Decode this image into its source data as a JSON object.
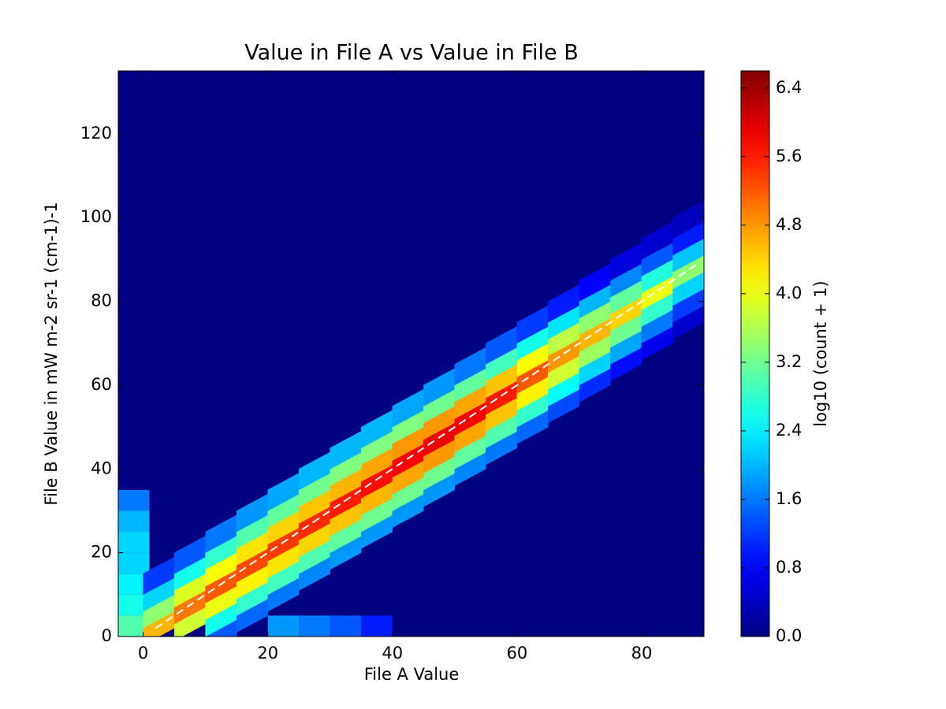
{
  "chart_data": {
    "type": "hexbin",
    "title": "Value in File A vs Value in File B",
    "x_label": "File A Value",
    "y_label": "File B Value in mW m-2 sr-1 (cm-1)-1",
    "colorbar_label": "log10 (count + 1)",
    "colormap": "jet",
    "xlim": [
      -4,
      90
    ],
    "xticks": [
      0,
      20,
      40,
      60,
      80
    ],
    "ylim": [
      0,
      135
    ],
    "yticks": [
      0,
      20,
      40,
      60,
      80,
      100,
      120
    ],
    "clim": [
      0,
      6.6
    ],
    "cticks": [
      {
        "value": 0,
        "label": "0.0"
      },
      0.8,
      1.6,
      2.4,
      3.2,
      {
        "value": 4,
        "label": "4.0"
      },
      4.8,
      5.6,
      6.4
    ],
    "reference_line": {
      "color": "#ffffff",
      "x": [
        2,
        89
      ],
      "y": [
        2,
        89
      ]
    },
    "band": {
      "x": [
        2.5,
        2.5,
        2.5,
        2.5,
        7.5,
        7.5,
        7.5,
        7.5,
        7.5,
        12.5,
        12.5,
        12.5,
        12.5,
        12.5,
        12.5,
        12.5,
        17.5,
        17.5,
        17.5,
        17.5,
        17.5,
        17.5,
        17.5,
        22.5,
        22.5,
        22.5,
        22.5,
        22.5,
        22.5,
        22.5,
        27.5,
        27.5,
        27.5,
        27.5,
        27.5,
        27.5,
        27.5,
        32.5,
        32.5,
        32.5,
        32.5,
        32.5,
        32.5,
        32.5,
        37.5,
        37.5,
        37.5,
        37.5,
        37.5,
        37.5,
        37.5,
        42.5,
        42.5,
        42.5,
        42.5,
        42.5,
        42.5,
        42.5,
        47.5,
        47.5,
        47.5,
        47.5,
        47.5,
        47.5,
        47.5,
        52.5,
        52.5,
        52.5,
        52.5,
        52.5,
        52.5,
        52.5,
        57.5,
        57.5,
        57.5,
        57.5,
        57.5,
        57.5,
        57.5,
        62.5,
        62.5,
        62.5,
        62.5,
        62.5,
        62.5,
        62.5,
        67.5,
        67.5,
        67.5,
        67.5,
        67.5,
        67.5,
        67.5,
        72.5,
        72.5,
        72.5,
        72.5,
        72.5,
        72.5,
        72.5,
        77.5,
        77.5,
        77.5,
        77.5,
        77.5,
        77.5,
        77.5,
        82.5,
        82.5,
        82.5,
        82.5,
        82.5,
        82.5,
        82.5,
        87.5,
        87.5,
        87.5,
        87.5,
        87.5,
        87.5,
        87.5
      ],
      "y": [
        2.5,
        6.5,
        10.5,
        14.5,
        3.5,
        7.5,
        11.5,
        15.5,
        19.5,
        0.5,
        4.5,
        8.5,
        12.5,
        16.5,
        20.5,
        24.5,
        5.5,
        9.5,
        13.5,
        17.5,
        21.5,
        25.5,
        29.5,
        10.5,
        14.5,
        18.5,
        22.5,
        26.5,
        30.5,
        34.5,
        15.5,
        19.5,
        23.5,
        27.5,
        31.5,
        35.5,
        39.5,
        20.5,
        24.5,
        28.5,
        32.5,
        36.5,
        40.5,
        44.5,
        25.5,
        29.5,
        33.5,
        37.5,
        41.5,
        45.5,
        49.5,
        30.5,
        34.5,
        38.5,
        42.5,
        46.5,
        50.5,
        54.5,
        35.5,
        39.5,
        43.5,
        47.5,
        51.5,
        55.5,
        59.5,
        40.5,
        44.5,
        48.5,
        52.5,
        56.5,
        60.5,
        64.5,
        45.5,
        49.5,
        53.5,
        57.5,
        61.5,
        65.5,
        69.5,
        50.5,
        54.5,
        58.5,
        62.5,
        66.5,
        70.5,
        74.5,
        55.5,
        59.5,
        63.5,
        67.5,
        71.5,
        75.5,
        79.5,
        60.5,
        64.5,
        68.5,
        72.5,
        76.5,
        80.5,
        84.5,
        65.5,
        69.5,
        73.5,
        77.5,
        81.5,
        85.5,
        89.5,
        70.5,
        74.5,
        78.5,
        82.5,
        86.5,
        90.5,
        94.5,
        75.5,
        79.5,
        83.5,
        87.5,
        91.5,
        95.5,
        99.5
      ],
      "values": [
        4.6,
        3.4,
        2.2,
        1.2,
        3.8,
        5.0,
        3.9,
        2.6,
        1.4,
        1.4,
        2.6,
        4.0,
        5.2,
        4.1,
        2.8,
        1.6,
        1.5,
        2.8,
        4.2,
        5.3,
        4.3,
        3.0,
        1.8,
        1.6,
        2.9,
        4.3,
        5.4,
        4.4,
        3.1,
        1.9,
        1.7,
        3.0,
        4.4,
        5.5,
        4.5,
        3.2,
        2.0,
        1.8,
        3.1,
        4.5,
        5.6,
        4.6,
        3.3,
        2.0,
        1.8,
        3.2,
        4.6,
        5.7,
        4.7,
        3.3,
        2.0,
        1.8,
        3.2,
        4.7,
        5.8,
        4.8,
        3.3,
        1.9,
        1.8,
        3.2,
        4.8,
        5.9,
        4.8,
        3.2,
        1.8,
        1.7,
        3.1,
        4.7,
        5.8,
        4.7,
        3.1,
        1.6,
        1.6,
        3.0,
        4.5,
        5.6,
        4.5,
        2.9,
        1.4,
        1.5,
        2.8,
        4.2,
        5.2,
        4.1,
        2.6,
        1.2,
        1.3,
        2.5,
        3.8,
        4.8,
        3.7,
        2.3,
        1.0,
        1.1,
        2.2,
        3.5,
        4.6,
        3.4,
        2.0,
        0.8,
        0.9,
        1.9,
        3.2,
        4.4,
        3.1,
        1.7,
        0.6,
        0.7,
        1.6,
        2.8,
        4.0,
        2.7,
        1.4,
        0.5,
        0.5,
        1.2,
        2.2,
        3.4,
        2.1,
        1.0,
        0.4
      ]
    },
    "blocks": {
      "x": [
        -1.5,
        -1.5,
        -1.5,
        -1.5,
        -1.5,
        -1.5,
        -1.5,
        22.5,
        27.5,
        32.5,
        37.5
      ],
      "y": [
        2.5,
        7.5,
        12.5,
        17.5,
        22.5,
        27.5,
        32.5,
        2.5,
        2.5,
        2.5,
        2.5
      ],
      "values": [
        3.0,
        2.6,
        2.4,
        2.2,
        2.2,
        2.0,
        1.6,
        1.8,
        1.6,
        1.4,
        1.0
      ]
    }
  }
}
